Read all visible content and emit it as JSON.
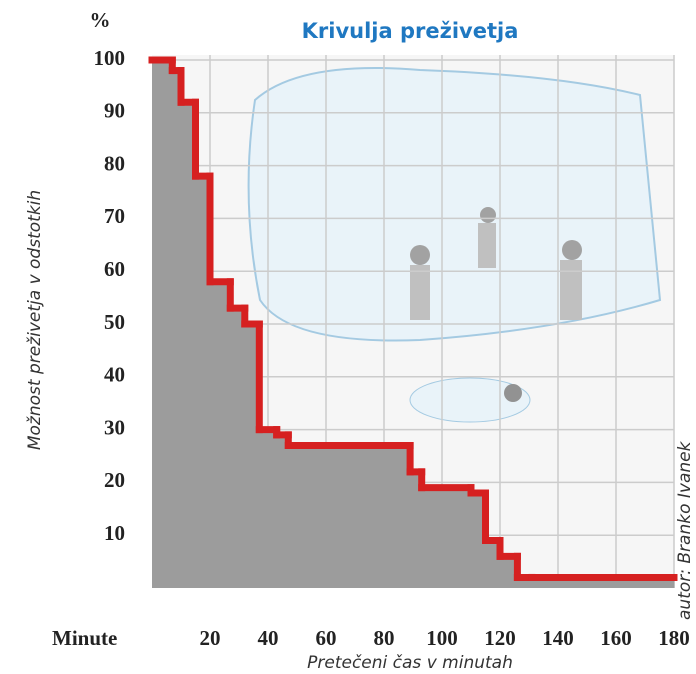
{
  "chart_data": {
    "type": "step",
    "title": "Krivulja preživetja",
    "y_unit": "%",
    "x_unit": "Minute",
    "ylabel": "Možnost preživetja v odstotkih",
    "xlabel": "Pretečeni čas v minutah",
    "credit": "autor: Branko Ivanek",
    "x": [
      0,
      7,
      10,
      15,
      20,
      27,
      32,
      37,
      43,
      47,
      89,
      93,
      110,
      115,
      120,
      126,
      131
    ],
    "values": [
      100,
      98,
      92,
      78,
      58,
      53,
      50,
      30,
      29,
      27,
      22,
      19,
      18,
      9,
      6,
      2,
      2
    ],
    "color": "#d62020",
    "fill": "#9c9c9c",
    "xlim": [
      0,
      180
    ],
    "ylim": [
      0,
      100
    ],
    "xticks": [
      20,
      40,
      60,
      80,
      100,
      120,
      140,
      160,
      180
    ],
    "yticks": [
      10,
      20,
      30,
      40,
      50,
      60,
      70,
      80,
      90,
      100
    ],
    "grid": true
  }
}
